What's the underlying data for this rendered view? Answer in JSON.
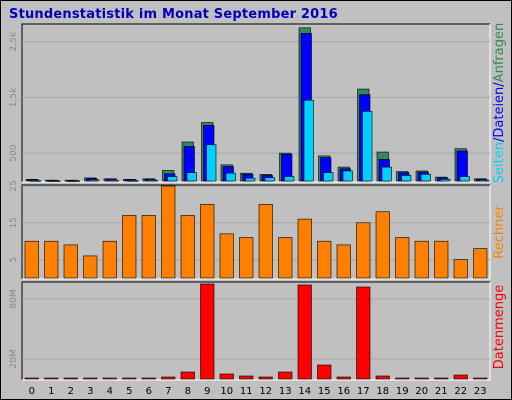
{
  "title": "Stundenstatistik im Monat September 2016",
  "colors": {
    "anfragen": "#2e8b57",
    "dateien": "#0000ff",
    "seiten": "#00d0ff",
    "rechner": "#ff8000",
    "datenmenge": "#ff0000",
    "background": "#c0c0c0",
    "title": "#0000c0"
  },
  "chart_data": [
    {
      "type": "bar",
      "panel": "top",
      "legend_vertical": [
        "Seiten",
        "/",
        "Dateien",
        "/",
        "Anfragen"
      ],
      "categories": [
        "0",
        "1",
        "2",
        "3",
        "4",
        "5",
        "6",
        "7",
        "8",
        "9",
        "10",
        "11",
        "12",
        "13",
        "14",
        "15",
        "16",
        "17",
        "18",
        "19",
        "20",
        "21",
        "22",
        "23"
      ],
      "y_tick_labels": [
        "2,5k",
        "1,5k",
        "500"
      ],
      "ylim": [
        0,
        2800
      ],
      "series": [
        {
          "name": "Anfragen",
          "values": [
            30,
            15,
            15,
            55,
            40,
            30,
            40,
            190,
            700,
            1050,
            290,
            140,
            120,
            500,
            2750,
            450,
            250,
            1650,
            520,
            170,
            180,
            70,
            580,
            40
          ]
        },
        {
          "name": "Dateien",
          "values": [
            25,
            10,
            10,
            45,
            35,
            25,
            30,
            130,
            620,
            1000,
            260,
            120,
            100,
            480,
            2650,
            420,
            220,
            1550,
            390,
            150,
            160,
            55,
            540,
            30
          ]
        },
        {
          "name": "Seiten",
          "values": [
            10,
            5,
            5,
            20,
            15,
            10,
            15,
            80,
            150,
            650,
            140,
            50,
            60,
            80,
            1450,
            150,
            180,
            1250,
            250,
            100,
            120,
            30,
            80,
            15
          ]
        }
      ]
    },
    {
      "type": "bar",
      "panel": "middle",
      "legend_vertical": [
        "Rechner"
      ],
      "categories": [
        "0",
        "1",
        "2",
        "3",
        "4",
        "5",
        "6",
        "7",
        "8",
        "9",
        "10",
        "11",
        "12",
        "13",
        "14",
        "15",
        "16",
        "17",
        "18",
        "19",
        "20",
        "21",
        "22",
        "23"
      ],
      "y_tick_labels": [
        "25",
        "15",
        "5"
      ],
      "ylim": [
        0,
        25
      ],
      "series": [
        {
          "name": "Rechner",
          "values": [
            10,
            10,
            9,
            6,
            10,
            17,
            17,
            25,
            17,
            20,
            12,
            11,
            20,
            11,
            16,
            10,
            9,
            15,
            18,
            11,
            10,
            10,
            5,
            8
          ]
        }
      ]
    },
    {
      "type": "bar",
      "panel": "bottom",
      "legend_vertical": [
        "Datenmenge"
      ],
      "categories": [
        "0",
        "1",
        "2",
        "3",
        "4",
        "5",
        "6",
        "7",
        "8",
        "9",
        "10",
        "11",
        "12",
        "13",
        "14",
        "15",
        "16",
        "17",
        "18",
        "19",
        "20",
        "21",
        "22",
        "23"
      ],
      "y_tick_labels": [
        "80M",
        "20M"
      ],
      "ylim": [
        0,
        96
      ],
      "series": [
        {
          "name": "Datenmenge",
          "values": [
            1,
            1,
            1,
            1,
            1,
            1,
            1,
            2,
            7,
            95,
            5,
            3,
            2,
            7,
            94,
            14,
            2,
            92,
            3,
            1,
            1,
            1,
            4,
            1
          ]
        }
      ]
    }
  ]
}
